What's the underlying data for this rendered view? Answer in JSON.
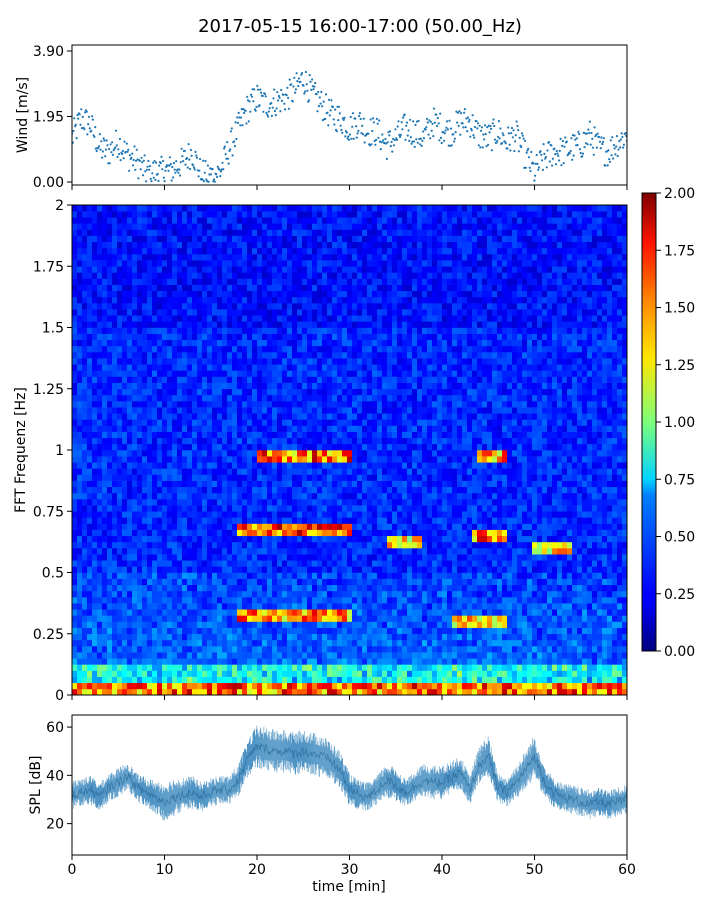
{
  "figure": {
    "title": "2017-05-15 16:00-17:00 (50.00_Hz)"
  },
  "chart_data": [
    {
      "type": "scatter",
      "name_hint": "wind",
      "ylabel": "Wind [m/s]",
      "xlim": [
        0,
        60
      ],
      "ylim": [
        0,
        3.9
      ],
      "yticks": [
        "0.00",
        "1.95",
        "3.90"
      ],
      "color": "#1f77b4",
      "x": [
        0,
        1,
        2,
        3,
        4,
        5,
        6,
        7,
        8,
        9,
        10,
        11,
        12,
        13,
        14,
        15,
        16,
        17,
        18,
        19,
        20,
        21,
        22,
        23,
        24,
        25,
        26,
        27,
        28,
        29,
        30,
        31,
        32,
        33,
        34,
        35,
        36,
        37,
        38,
        39,
        40,
        41,
        42,
        43,
        44,
        45,
        46,
        47,
        48,
        49,
        50,
        51,
        52,
        53,
        54,
        55,
        56,
        57,
        58,
        59,
        60
      ],
      "y": [
        1.3,
        1.9,
        1.7,
        1.0,
        0.9,
        1.2,
        0.8,
        0.6,
        0.3,
        0.3,
        0.3,
        0.4,
        0.6,
        0.9,
        0.2,
        0.2,
        0.3,
        1.0,
        1.6,
        2.2,
        2.5,
        2.3,
        2.4,
        2.5,
        2.7,
        3.1,
        2.6,
        2.3,
        2.0,
        1.9,
        1.6,
        1.8,
        1.5,
        1.5,
        1.1,
        1.3,
        1.6,
        1.5,
        1.3,
        1.8,
        1.6,
        1.5,
        1.8,
        1.8,
        1.4,
        1.3,
        1.5,
        1.2,
        1.4,
        0.8,
        0.3,
        0.7,
        0.9,
        0.9,
        1.0,
        1.1,
        1.4,
        1.0,
        0.9,
        1.2,
        1.4
      ]
    },
    {
      "type": "heatmap",
      "name_hint": "fft",
      "ylabel": "FFT Frequenz [Hz]",
      "xlim": [
        0,
        60
      ],
      "ylim": [
        0,
        2
      ],
      "yticks": [
        "0",
        "0.25",
        "0.5",
        "0.75",
        "1",
        "1.25",
        "1.5",
        "1.75",
        "2"
      ],
      "colorbar": {
        "range": [
          0,
          2
        ],
        "ticks": [
          "0.00",
          "0.25",
          "0.50",
          "0.75",
          "1.00",
          "1.25",
          "1.50",
          "1.75",
          "2.00"
        ],
        "colormap": "jet"
      },
      "highlights": [
        {
          "x": [
            18,
            30
          ],
          "freq": 0.67,
          "value": 2.0
        },
        {
          "x": [
            20,
            30
          ],
          "freq": 0.97,
          "value": 1.9
        },
        {
          "x": [
            18,
            30
          ],
          "freq": 0.33,
          "value": 1.8
        },
        {
          "x": [
            34,
            38
          ],
          "freq": 0.62,
          "value": 1.6
        },
        {
          "x": [
            43,
            47
          ],
          "freq": 0.65,
          "value": 1.9
        },
        {
          "x": [
            44,
            47
          ],
          "freq": 0.97,
          "value": 1.8
        },
        {
          "x": [
            41,
            47
          ],
          "freq": 0.3,
          "value": 1.7
        },
        {
          "x": [
            50,
            54
          ],
          "freq": 0.6,
          "value": 1.6
        },
        {
          "x": [
            0,
            60
          ],
          "freq": 0.02,
          "value": 1.9
        }
      ]
    },
    {
      "type": "area",
      "name_hint": "spl",
      "ylabel": "SPL [dB]",
      "xlabel": "time [min]",
      "xlim": [
        0,
        60
      ],
      "ylim": [
        7,
        65
      ],
      "yticks": [
        "20",
        "40",
        "60"
      ],
      "xticks": [
        "0",
        "10",
        "20",
        "30",
        "40",
        "50",
        "60"
      ],
      "color": "#1f77b4",
      "x": [
        0,
        1,
        2,
        3,
        4,
        5,
        6,
        7,
        8,
        9,
        10,
        11,
        12,
        13,
        14,
        15,
        16,
        17,
        18,
        19,
        20,
        21,
        22,
        23,
        24,
        25,
        26,
        27,
        28,
        29,
        30,
        31,
        32,
        33,
        34,
        35,
        36,
        37,
        38,
        39,
        40,
        41,
        42,
        43,
        44,
        45,
        46,
        47,
        48,
        49,
        50,
        51,
        52,
        53,
        54,
        55,
        56,
        57,
        58,
        59,
        60
      ],
      "y": [
        32,
        33,
        34,
        31,
        35,
        37,
        40,
        35,
        33,
        31,
        29,
        31,
        32,
        33,
        31,
        33,
        34,
        34,
        38,
        47,
        52,
        51,
        50,
        50,
        49,
        50,
        49,
        48,
        46,
        42,
        34,
        32,
        31,
        34,
        38,
        36,
        33,
        35,
        38,
        37,
        37,
        39,
        41,
        34,
        44,
        48,
        35,
        33,
        37,
        42,
        48,
        38,
        33,
        31,
        30,
        29,
        28,
        29,
        28,
        29,
        30
      ],
      "spread": [
        6,
        6,
        6,
        6,
        6,
        6,
        6,
        6,
        6,
        7,
        8,
        8,
        7,
        7,
        6,
        6,
        6,
        6,
        7,
        8,
        9,
        9,
        9,
        9,
        9,
        9,
        9,
        9,
        8,
        8,
        7,
        6,
        6,
        6,
        7,
        7,
        6,
        6,
        7,
        7,
        7,
        7,
        7,
        6,
        8,
        9,
        6,
        6,
        7,
        8,
        9,
        7,
        6,
        6,
        6,
        6,
        6,
        6,
        6,
        6,
        6
      ]
    }
  ]
}
